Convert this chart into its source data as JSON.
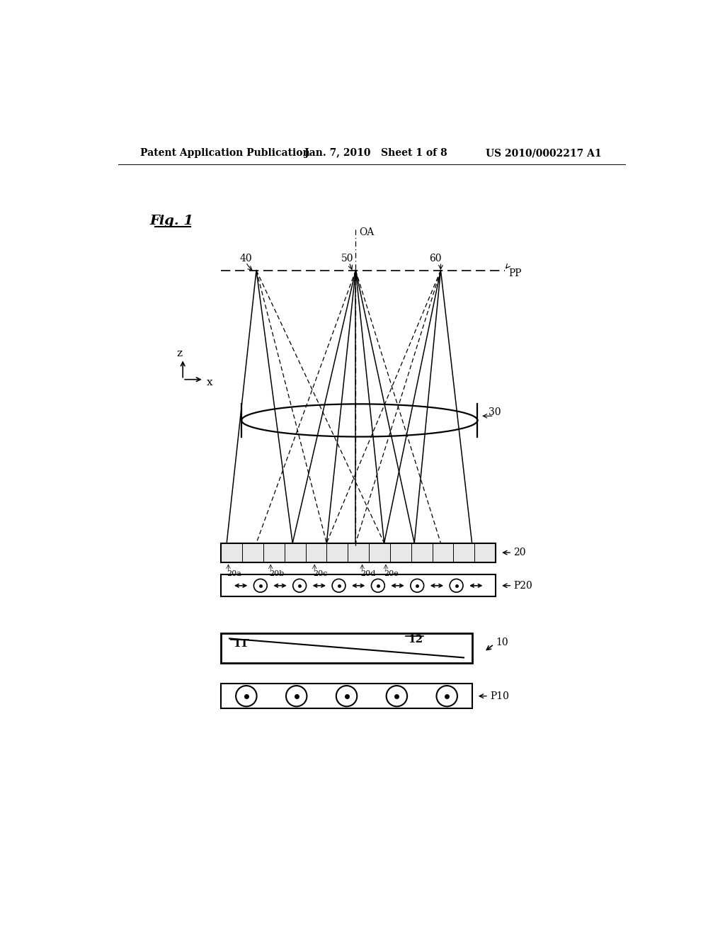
{
  "bg_color": "#ffffff",
  "header_left": "Patent Application Publication",
  "header_mid": "Jan. 7, 2010   Sheet 1 of 8",
  "header_right": "US 2010/0002217 A1",
  "fig_label": "Fig. 1",
  "label_OA": "OA",
  "label_PP": "PP",
  "label_40": "40",
  "label_50": "50",
  "label_60": "60",
  "label_30": "30",
  "label_20": "20",
  "label_20a": "20a",
  "label_20b": "20b",
  "label_20c": "20c",
  "label_20d": "20d",
  "label_20e": "20e",
  "label_P20": "P20",
  "label_10": "10",
  "label_11": "11",
  "label_12": "12",
  "label_P10": "P10",
  "line_color": "#000000",
  "dashed_color": "#000000"
}
